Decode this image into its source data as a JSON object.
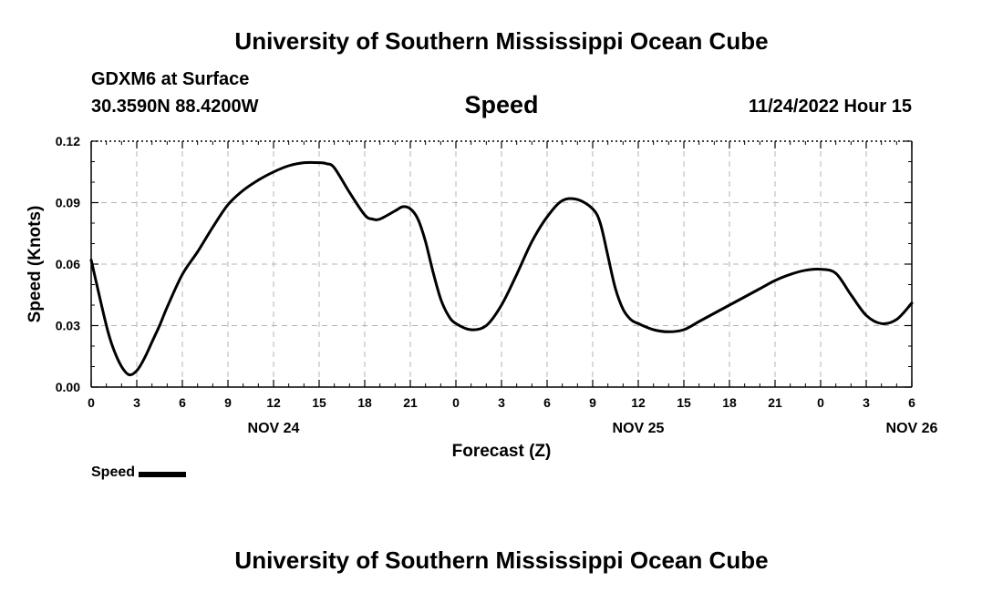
{
  "header": {
    "title": "University of Southern Mississippi Ocean Cube",
    "station": "GDXM6 at Surface",
    "coordinates": "30.3590N  88.4200W",
    "variable": "Speed",
    "valid_time": "11/24/2022 Hour 15"
  },
  "footer": {
    "title": "University of Southern Mississippi Ocean Cube"
  },
  "legend": {
    "label": "Speed",
    "color": "#000000"
  },
  "chart_data": {
    "type": "line",
    "title": "Speed",
    "xlabel": "Forecast (Z)",
    "ylabel": "Speed (Knots)",
    "xlim": [
      0,
      54
    ],
    "ylim": [
      0,
      0.12
    ],
    "y_ticks": [
      "0.00",
      "0.03",
      "0.06",
      "0.09",
      "0.12"
    ],
    "x_ticks": [
      "0",
      "3",
      "6",
      "9",
      "12",
      "15",
      "18",
      "21",
      "0",
      "3",
      "6",
      "9",
      "12",
      "15",
      "18",
      "21",
      "0",
      "3",
      "6"
    ],
    "date_labels": [
      {
        "label": "NOV 24",
        "at_hour": 12
      },
      {
        "label": "NOV 25",
        "at_hour": 36
      },
      {
        "label": "NOV 26",
        "at_hour": 54
      }
    ],
    "grid": true,
    "series": [
      {
        "name": "Speed",
        "color": "#000000",
        "x": [
          0,
          1,
          1.5,
          2,
          2.5,
          3,
          3.5,
          4,
          4.5,
          5,
          6,
          7,
          8,
          9,
          10,
          11,
          12,
          13,
          14,
          15,
          15.5,
          16,
          17,
          18,
          18.5,
          19,
          20,
          20.5,
          21,
          21.5,
          22,
          22.5,
          23,
          23.5,
          24,
          25,
          26,
          27,
          28,
          29,
          30,
          31,
          32,
          33,
          33.5,
          34,
          34.5,
          35,
          35.5,
          36,
          37,
          38,
          39,
          40,
          41,
          42,
          43,
          44,
          45,
          46,
          47,
          48,
          49,
          50,
          51,
          52,
          53,
          54
        ],
        "y": [
          0.062,
          0.03,
          0.018,
          0.01,
          0.006,
          0.008,
          0.014,
          0.022,
          0.03,
          0.039,
          0.055,
          0.066,
          0.078,
          0.089,
          0.096,
          0.101,
          0.105,
          0.108,
          0.1095,
          0.1095,
          0.109,
          0.107,
          0.095,
          0.084,
          0.082,
          0.082,
          0.086,
          0.088,
          0.087,
          0.082,
          0.071,
          0.056,
          0.043,
          0.035,
          0.031,
          0.028,
          0.03,
          0.04,
          0.055,
          0.071,
          0.083,
          0.091,
          0.0915,
          0.087,
          0.08,
          0.064,
          0.048,
          0.038,
          0.033,
          0.031,
          0.028,
          0.027,
          0.028,
          0.032,
          0.036,
          0.04,
          0.044,
          0.048,
          0.052,
          0.055,
          0.057,
          0.0575,
          0.0555,
          0.045,
          0.035,
          0.031,
          0.033,
          0.041
        ]
      }
    ]
  }
}
